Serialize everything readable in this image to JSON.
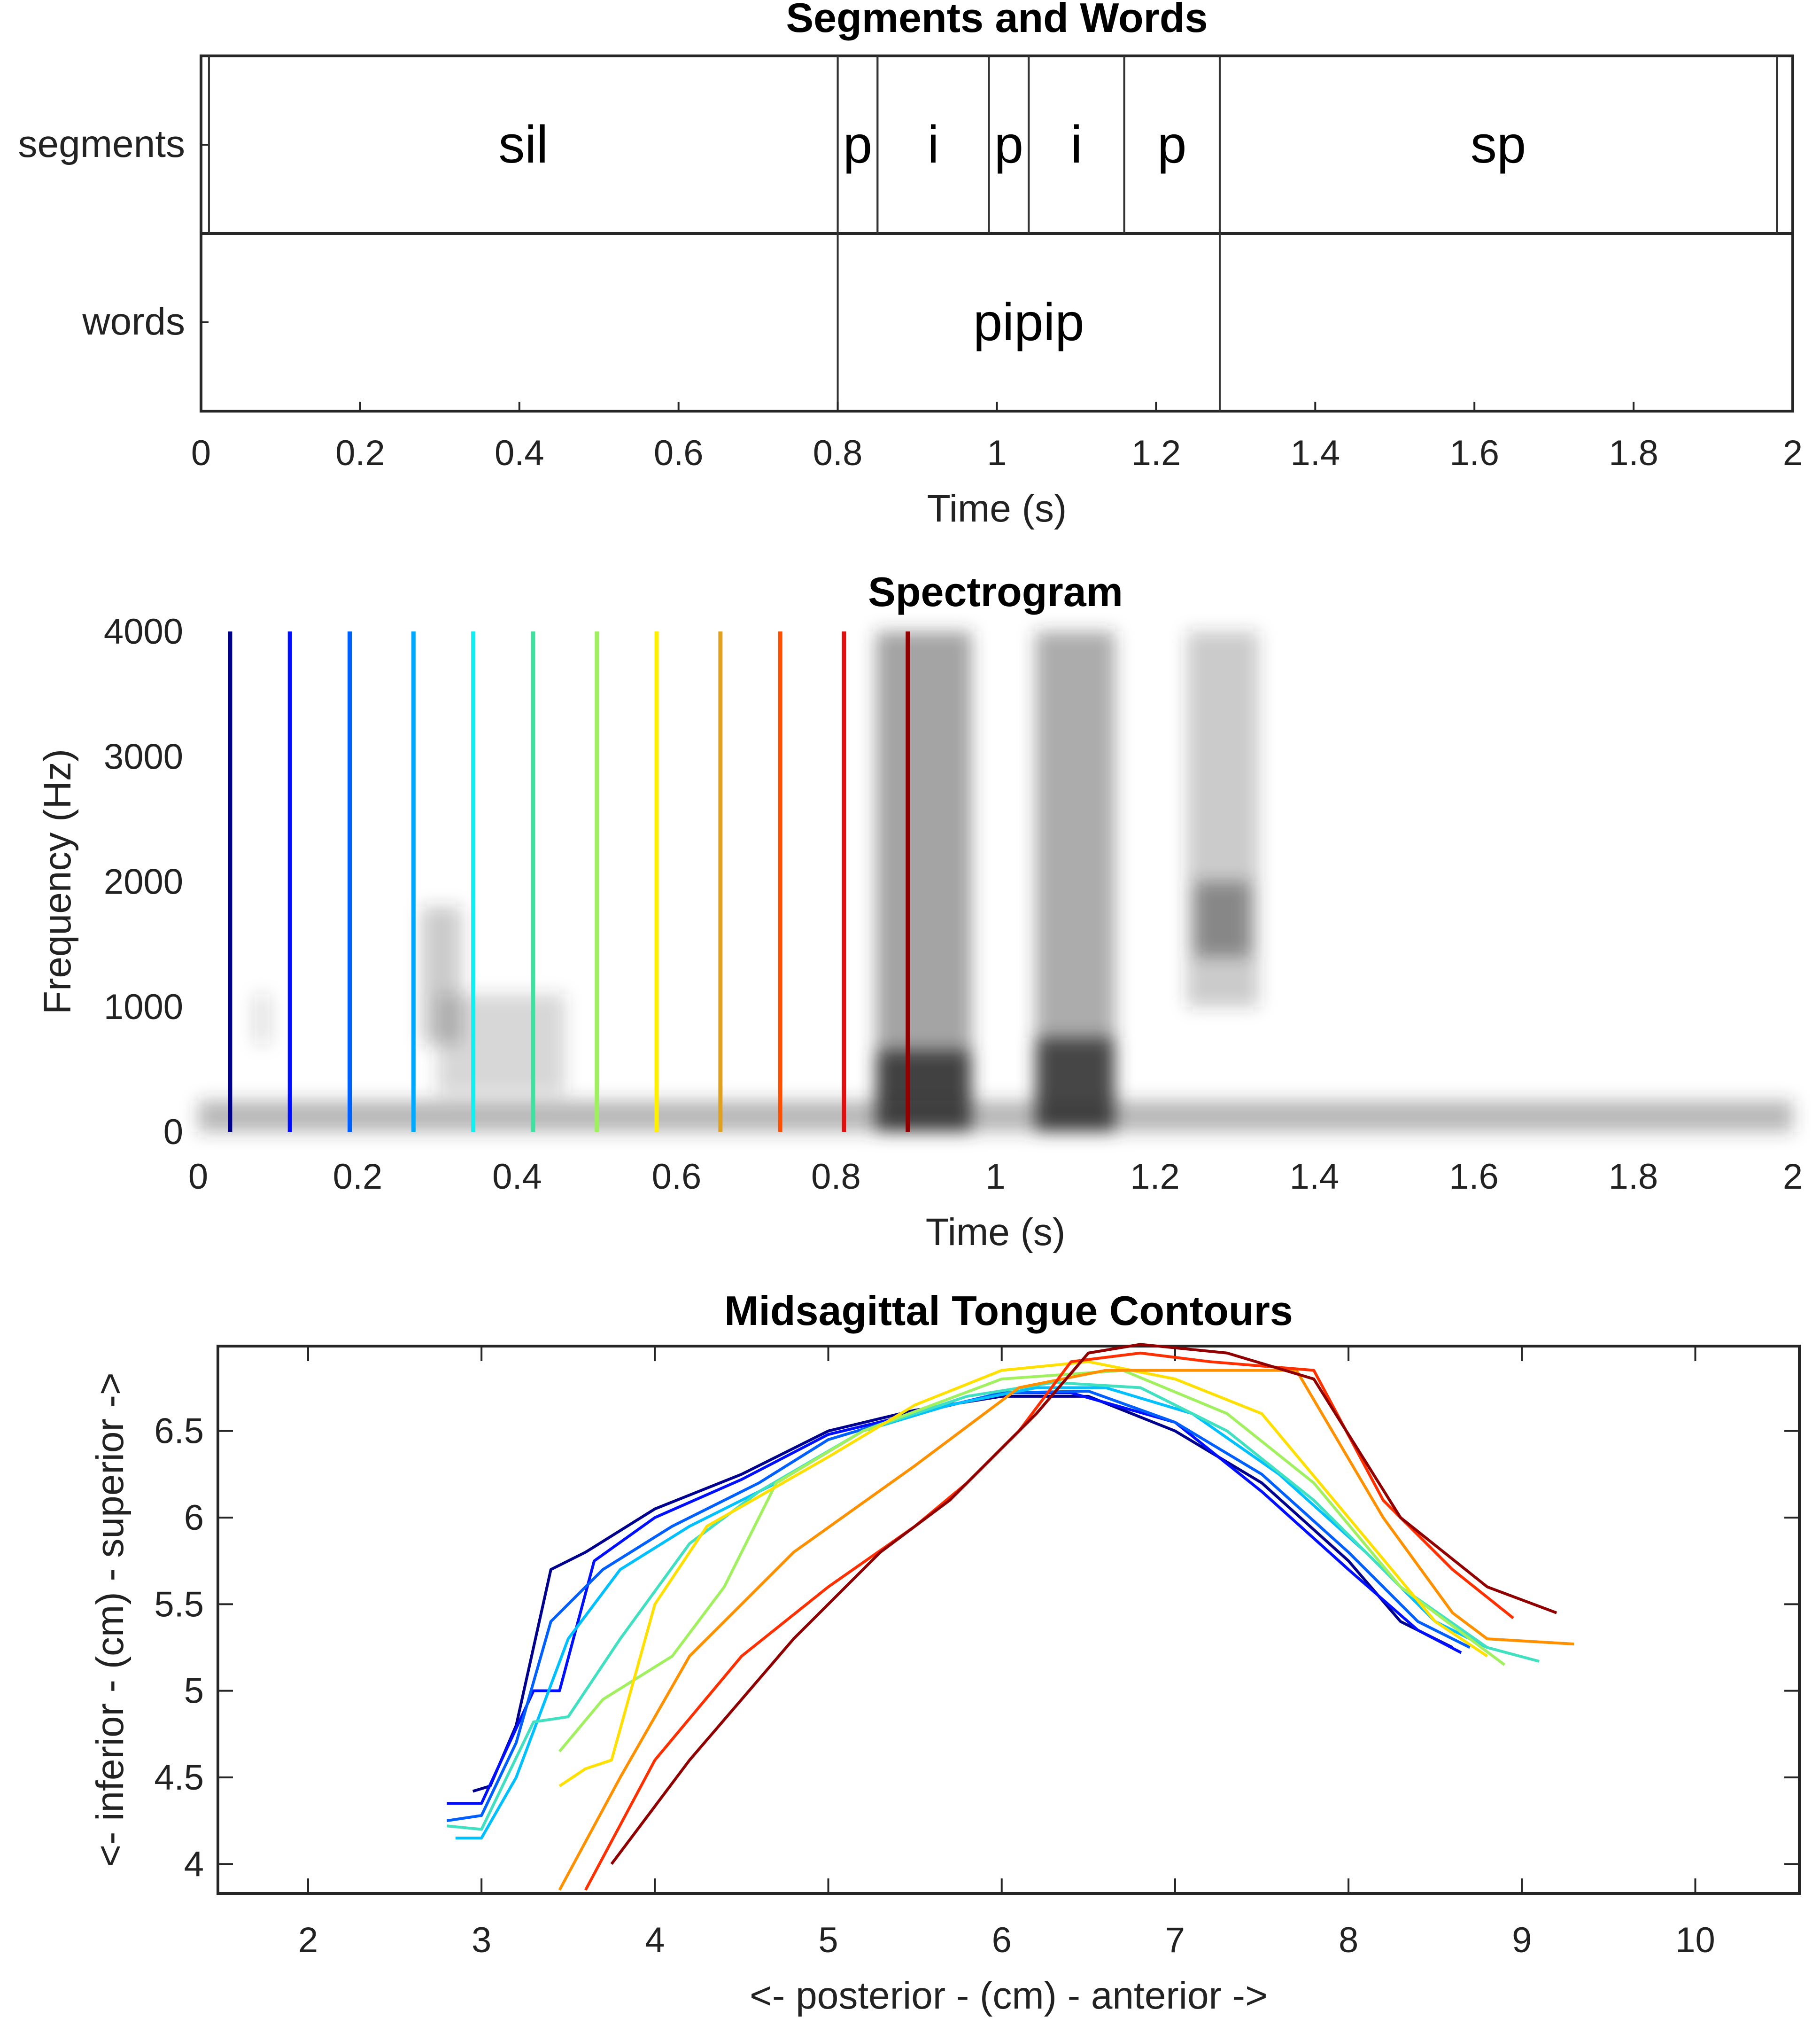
{
  "chart_data": [
    {
      "type": "table",
      "title": "Segments and Words",
      "xlabel": "Time (s)",
      "xlim": [
        0,
        2
      ],
      "xticks": [
        "0",
        "0.2",
        "0.4",
        "0.6",
        "0.8",
        "1",
        "1.2",
        "1.4",
        "1.6",
        "1.8",
        "2"
      ],
      "tiers": [
        {
          "name": "segments",
          "intervals": [
            {
              "label": "sil",
              "start": 0.01,
              "end": 0.8
            },
            {
              "label": "p",
              "start": 0.8,
              "end": 0.85
            },
            {
              "label": "i",
              "start": 0.85,
              "end": 0.99
            },
            {
              "label": "p",
              "start": 0.99,
              "end": 1.04
            },
            {
              "label": "i",
              "start": 1.04,
              "end": 1.16
            },
            {
              "label": "p",
              "start": 1.16,
              "end": 1.28
            },
            {
              "label": "sp",
              "start": 1.28,
              "end": 1.98
            }
          ]
        },
        {
          "name": "words",
          "intervals": [
            {
              "label": "pipip",
              "start": 0.8,
              "end": 1.28
            }
          ]
        }
      ]
    },
    {
      "type": "heatmap",
      "title": "Spectrogram",
      "xlabel": "Time (s)",
      "ylabel": "Frequency (Hz)",
      "xlim": [
        0,
        2
      ],
      "ylim": [
        0,
        4000
      ],
      "xticks": [
        "0",
        "0.2",
        "0.4",
        "0.6",
        "0.8",
        "1",
        "1.2",
        "1.4",
        "1.6",
        "1.8",
        "2"
      ],
      "yticks": [
        "0",
        "1000",
        "2000",
        "3000",
        "4000"
      ],
      "colormap": "gray (inverted)",
      "spectral_energy": [
        {
          "t": [
            0,
            2
          ],
          "f": [
            0,
            250
          ],
          "intensity": 0.35
        },
        {
          "t": [
            0.28,
            0.33
          ],
          "f": [
            700,
            1800
          ],
          "intensity": 0.25
        },
        {
          "t": [
            0.3,
            0.46
          ],
          "f": [
            300,
            1100
          ],
          "intensity": 0.2
        },
        {
          "t": [
            0.07,
            0.09
          ],
          "f": [
            700,
            1100
          ],
          "intensity": 0.15
        },
        {
          "t": [
            0.85,
            0.97
          ],
          "f": [
            0,
            4000
          ],
          "intensity": 0.45
        },
        {
          "t": [
            0.85,
            0.97
          ],
          "f": [
            0,
            650
          ],
          "intensity": 0.85
        },
        {
          "t": [
            1.05,
            1.15
          ],
          "f": [
            0,
            4000
          ],
          "intensity": 0.4
        },
        {
          "t": [
            1.05,
            1.15
          ],
          "f": [
            0,
            750
          ],
          "intensity": 0.85
        },
        {
          "t": [
            1.24,
            1.33
          ],
          "f": [
            1000,
            4000
          ],
          "intensity": 0.25
        },
        {
          "t": [
            1.25,
            1.32
          ],
          "f": [
            1400,
            2000
          ],
          "intensity": 0.45
        }
      ],
      "time_markers": [
        {
          "t": 0.04,
          "color": "#00008f"
        },
        {
          "t": 0.115,
          "color": "#0010ff"
        },
        {
          "t": 0.19,
          "color": "#0060ff"
        },
        {
          "t": 0.27,
          "color": "#00a8ff"
        },
        {
          "t": 0.345,
          "color": "#10f0f0"
        },
        {
          "t": 0.42,
          "color": "#40e0a0"
        },
        {
          "t": 0.5,
          "color": "#9ff060"
        },
        {
          "t": 0.575,
          "color": "#ffef00"
        },
        {
          "t": 0.655,
          "color": "#e0a020"
        },
        {
          "t": 0.73,
          "color": "#ff5000"
        },
        {
          "t": 0.81,
          "color": "#e01010"
        },
        {
          "t": 0.89,
          "color": "#900000"
        }
      ]
    },
    {
      "type": "line",
      "title": "Midsagittal Tongue Contours",
      "xlabel": "<- posterior - (cm) - anterior ->",
      "ylabel": "<- inferior - (cm) - superior ->",
      "xlim": [
        1.48,
        10.6
      ],
      "ylim": [
        3.83,
        6.99
      ],
      "xticks": [
        "2",
        "3",
        "4",
        "5",
        "6",
        "7",
        "8",
        "9",
        "10"
      ],
      "yticks": [
        "4",
        "4.5",
        "5",
        "5.5",
        "6",
        "6.5"
      ],
      "series": [
        {
          "color": "#00008f",
          "points": [
            [
              2.95,
              4.42
            ],
            [
              3.05,
              4.45
            ],
            [
              3.2,
              4.8
            ],
            [
              3.4,
              5.7
            ],
            [
              3.6,
              5.8
            ],
            [
              4.0,
              6.05
            ],
            [
              4.5,
              6.25
            ],
            [
              5,
              6.5
            ],
            [
              5.5,
              6.62
            ],
            [
              6,
              6.7
            ],
            [
              6.5,
              6.7
            ],
            [
              7,
              6.5
            ],
            [
              7.5,
              6.2
            ],
            [
              8,
              5.75
            ],
            [
              8.3,
              5.4
            ],
            [
              8.6,
              5.25
            ]
          ]
        },
        {
          "color": "#0010ff",
          "points": [
            [
              2.8,
              4.35
            ],
            [
              3.0,
              4.35
            ],
            [
              3.3,
              5.0
            ],
            [
              3.45,
              5.0
            ],
            [
              3.65,
              5.75
            ],
            [
              4.0,
              6.0
            ],
            [
              4.5,
              6.22
            ],
            [
              5,
              6.48
            ],
            [
              5.5,
              6.6
            ],
            [
              6,
              6.72
            ],
            [
              6.4,
              6.72
            ],
            [
              7,
              6.55
            ],
            [
              7.5,
              6.15
            ],
            [
              8,
              5.7
            ],
            [
              8.4,
              5.35
            ],
            [
              8.65,
              5.22
            ]
          ]
        },
        {
          "color": "#0060ff",
          "points": [
            [
              2.8,
              4.25
            ],
            [
              3.0,
              4.28
            ],
            [
              3.2,
              4.7
            ],
            [
              3.4,
              5.4
            ],
            [
              3.7,
              5.7
            ],
            [
              4.1,
              5.95
            ],
            [
              4.6,
              6.2
            ],
            [
              5,
              6.45
            ],
            [
              5.5,
              6.6
            ],
            [
              6,
              6.72
            ],
            [
              6.5,
              6.73
            ],
            [
              7,
              6.55
            ],
            [
              7.5,
              6.25
            ],
            [
              8,
              5.8
            ],
            [
              8.4,
              5.4
            ],
            [
              8.7,
              5.25
            ]
          ]
        },
        {
          "color": "#00c0ff",
          "points": [
            [
              2.85,
              4.15
            ],
            [
              3.0,
              4.15
            ],
            [
              3.2,
              4.5
            ],
            [
              3.5,
              5.3
            ],
            [
              3.8,
              5.7
            ],
            [
              4.2,
              5.95
            ],
            [
              4.7,
              6.2
            ],
            [
              5.2,
              6.5
            ],
            [
              5.7,
              6.65
            ],
            [
              6.2,
              6.75
            ],
            [
              6.6,
              6.75
            ],
            [
              7.1,
              6.6
            ],
            [
              7.6,
              6.25
            ],
            [
              8.1,
              5.8
            ],
            [
              8.5,
              5.4
            ],
            [
              8.8,
              5.25
            ]
          ]
        },
        {
          "color": "#40e0c0",
          "points": [
            [
              2.8,
              4.22
            ],
            [
              3.0,
              4.2
            ],
            [
              3.3,
              4.82
            ],
            [
              3.5,
              4.85
            ],
            [
              3.8,
              5.3
            ],
            [
              4.2,
              5.85
            ],
            [
              4.6,
              6.15
            ],
            [
              5.2,
              6.5
            ],
            [
              5.8,
              6.7
            ],
            [
              6.3,
              6.78
            ],
            [
              6.8,
              6.75
            ],
            [
              7.3,
              6.5
            ],
            [
              7.8,
              6.1
            ],
            [
              8.3,
              5.6
            ],
            [
              8.8,
              5.25
            ],
            [
              9.1,
              5.17
            ]
          ]
        },
        {
          "color": "#a0f060",
          "points": [
            [
              3.45,
              4.65
            ],
            [
              3.7,
              4.95
            ],
            [
              4.1,
              5.2
            ],
            [
              4.4,
              5.6
            ],
            [
              4.7,
              6.2
            ],
            [
              5.2,
              6.5
            ],
            [
              6,
              6.8
            ],
            [
              6.7,
              6.85
            ],
            [
              7.3,
              6.6
            ],
            [
              7.8,
              6.2
            ],
            [
              8.3,
              5.6
            ],
            [
              8.9,
              5.15
            ]
          ]
        },
        {
          "color": "#ffe000",
          "points": [
            [
              3.45,
              4.45
            ],
            [
              3.6,
              4.55
            ],
            [
              3.75,
              4.6
            ],
            [
              4.0,
              5.5
            ],
            [
              4.3,
              5.95
            ],
            [
              5,
              6.35
            ],
            [
              5.5,
              6.65
            ],
            [
              6,
              6.85
            ],
            [
              6.5,
              6.9
            ],
            [
              7,
              6.8
            ],
            [
              7.5,
              6.6
            ],
            [
              8,
              6.0
            ],
            [
              8.5,
              5.4
            ],
            [
              8.8,
              5.2
            ]
          ]
        },
        {
          "color": "#ff9000",
          "points": [
            [
              3.45,
              3.85
            ],
            [
              3.8,
              4.5
            ],
            [
              4.2,
              5.2
            ],
            [
              4.8,
              5.8
            ],
            [
              5.5,
              6.3
            ],
            [
              6.1,
              6.75
            ],
            [
              6.6,
              6.85
            ],
            [
              7,
              6.85
            ],
            [
              7.7,
              6.85
            ],
            [
              8.2,
              6.0
            ],
            [
              8.6,
              5.45
            ],
            [
              8.8,
              5.3
            ],
            [
              9.3,
              5.27
            ]
          ]
        },
        {
          "color": "#ff3000",
          "points": [
            [
              3.6,
              3.85
            ],
            [
              4,
              4.6
            ],
            [
              4.5,
              5.2
            ],
            [
              5.0,
              5.6
            ],
            [
              5.5,
              5.95
            ],
            [
              5.8,
              6.2
            ],
            [
              6.1,
              6.5
            ],
            [
              6.4,
              6.9
            ],
            [
              6.8,
              6.95
            ],
            [
              7.2,
              6.9
            ],
            [
              7.8,
              6.85
            ],
            [
              8.2,
              6.1
            ],
            [
              8.6,
              5.7
            ],
            [
              8.95,
              5.42
            ]
          ]
        },
        {
          "color": "#900000",
          "points": [
            [
              3.75,
              4.0
            ],
            [
              4.2,
              4.6
            ],
            [
              4.8,
              5.3
            ],
            [
              5.3,
              5.8
            ],
            [
              5.7,
              6.1
            ],
            [
              6.2,
              6.6
            ],
            [
              6.5,
              6.95
            ],
            [
              6.8,
              7.0
            ],
            [
              7.3,
              6.95
            ],
            [
              7.8,
              6.8
            ],
            [
              8.3,
              6.0
            ],
            [
              8.8,
              5.6
            ],
            [
              9.2,
              5.45
            ]
          ]
        }
      ]
    }
  ]
}
